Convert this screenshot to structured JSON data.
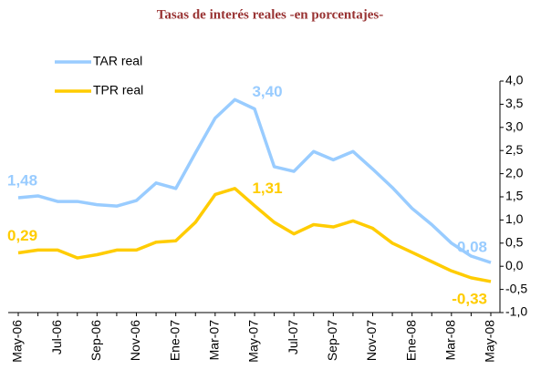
{
  "chart_data": {
    "type": "line",
    "title": "Tasas de interés reales -en porcentajes-",
    "categories": [
      "May-06",
      null,
      "Jul-06",
      null,
      "Sep-06",
      null,
      "Nov-06",
      null,
      "Ene-07",
      null,
      "Mar-07",
      null,
      "May-07",
      null,
      "Jul-07",
      null,
      "Sep-07",
      null,
      "Nov-07",
      null,
      "Ene-08",
      null,
      "Mar-08",
      null,
      "May-08"
    ],
    "series": [
      {
        "name": "TAR real",
        "color": "#99ccff",
        "values": [
          1.48,
          1.52,
          1.4,
          1.4,
          1.33,
          1.3,
          1.42,
          1.8,
          1.68,
          2.45,
          3.2,
          3.6,
          3.4,
          2.15,
          2.05,
          2.48,
          2.3,
          2.48,
          2.1,
          1.7,
          1.25,
          0.9,
          0.5,
          0.22,
          0.08
        ],
        "value_labels": [
          "1,48",
          null,
          null,
          null,
          null,
          null,
          null,
          null,
          null,
          null,
          null,
          null,
          "3,40",
          null,
          null,
          null,
          null,
          null,
          null,
          null,
          null,
          null,
          null,
          null,
          "0,08"
        ]
      },
      {
        "name": "TPR real",
        "color": "#ffcc00",
        "values": [
          0.29,
          0.35,
          0.35,
          0.18,
          0.25,
          0.35,
          0.35,
          0.52,
          0.55,
          0.95,
          1.55,
          1.68,
          1.31,
          0.95,
          0.7,
          0.9,
          0.85,
          0.98,
          0.82,
          0.5,
          0.3,
          0.1,
          -0.1,
          -0.25,
          -0.33
        ],
        "value_labels": [
          "0,29",
          null,
          null,
          null,
          null,
          null,
          null,
          null,
          null,
          null,
          null,
          null,
          "1,31",
          null,
          null,
          null,
          null,
          null,
          null,
          null,
          null,
          null,
          null,
          null,
          "-0,33"
        ]
      }
    ],
    "ylim": [
      -1,
      4
    ],
    "yticks": [
      {
        "value": -1,
        "label": "-1,0"
      },
      {
        "value": -0.5,
        "label": "-0,5"
      },
      {
        "value": 0,
        "label": "0,0"
      },
      {
        "value": 0.5,
        "label": "0,5"
      },
      {
        "value": 1,
        "label": "1,0"
      },
      {
        "value": 1.5,
        "label": "1,5"
      },
      {
        "value": 2,
        "label": "2,0"
      },
      {
        "value": 2.5,
        "label": "2,5"
      },
      {
        "value": 3,
        "label": "3,0"
      },
      {
        "value": 3.5,
        "label": "3,5"
      },
      {
        "value": 4,
        "label": "4,0"
      }
    ],
    "legend": "top-left",
    "grid": false
  }
}
